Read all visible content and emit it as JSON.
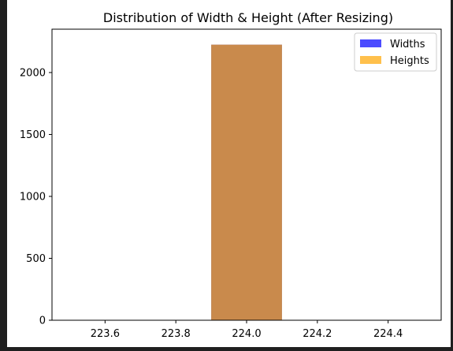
{
  "chart_data": {
    "type": "bar",
    "title": "Distribution of Width & Height (After Resizing)",
    "xlabel": "",
    "ylabel": "",
    "xlim": [
      223.45,
      224.55
    ],
    "ylim": [
      0,
      2350
    ],
    "x_ticks": [
      223.6,
      223.8,
      224.0,
      224.2,
      224.4
    ],
    "x_tick_labels": [
      "223.6",
      "223.8",
      "224.0",
      "224.2",
      "224.4"
    ],
    "y_ticks": [
      0,
      500,
      1000,
      1500,
      2000
    ],
    "y_tick_labels": [
      "0",
      "500",
      "1000",
      "1500",
      "2000"
    ],
    "grid": false,
    "legend_position": "top-right",
    "bar_range": [
      223.9,
      224.1
    ],
    "series": [
      {
        "name": "Widths",
        "color": "#0000ff",
        "opacity": 0.7,
        "values": [
          2225
        ]
      },
      {
        "name": "Heights",
        "color": "#ffa500",
        "opacity": 0.7,
        "values": [
          2225
        ]
      }
    ]
  }
}
